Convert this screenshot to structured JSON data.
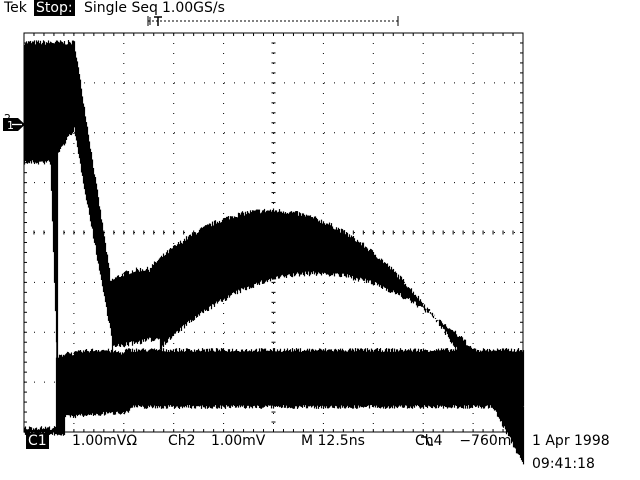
{
  "header": {
    "brand": "Tek",
    "run_state": "Stop:",
    "acq_mode": "Single Seq",
    "sample_rate": "1.00GS/s"
  },
  "channel_marker": {
    "ref": "2",
    "label": "1"
  },
  "footer": {
    "ch1_badge": "C1",
    "ch1_scale": "1.00mVΩ",
    "ch2_label": "Ch2",
    "ch2_scale": "1.00mV",
    "timebase": "M 12.5ns",
    "trig_source": "Ch4",
    "trig_slope_icon": "falling-edge-icon",
    "trig_level": "−760mV",
    "date": "1 Apr 1998",
    "time": "09:41:18"
  },
  "waveforms": {
    "color": "#000000",
    "background": "#ffffff"
  }
}
